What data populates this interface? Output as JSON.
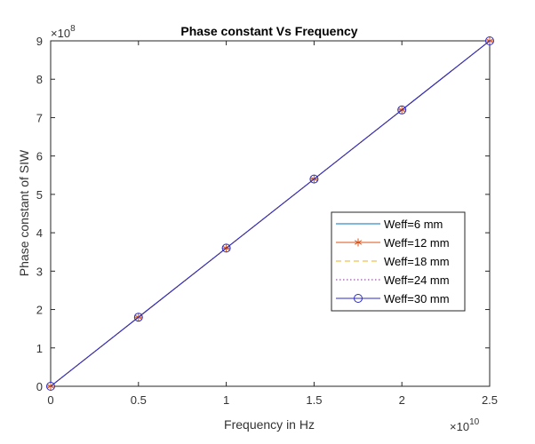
{
  "chart_data": {
    "type": "line",
    "title": "Phase constant  Vs Frequency",
    "xlabel": "Frequency in Hz",
    "ylabel": "Phase constant of SIW",
    "x_exponent_label": "×10",
    "x_exponent_power": "10",
    "y_exponent_label": "×10",
    "y_exponent_power": "8",
    "xlim": [
      0,
      2.5
    ],
    "ylim": [
      0,
      9
    ],
    "x_scale_factor": 10000000000,
    "y_scale_factor": 100000000,
    "xticks": [
      0,
      0.5,
      1,
      1.5,
      2,
      2.5
    ],
    "xtick_labels": [
      "0",
      "0.5",
      "1",
      "1.5",
      "2",
      "2.5"
    ],
    "yticks": [
      0,
      1,
      2,
      3,
      4,
      5,
      6,
      7,
      8,
      9
    ],
    "ytick_labels": [
      "0",
      "1",
      "2",
      "3",
      "4",
      "5",
      "6",
      "7",
      "8",
      "9"
    ],
    "grid": false,
    "legend_position": "right-middle",
    "x": [
      0,
      0.5,
      1,
      1.5,
      2,
      2.5
    ],
    "series": [
      {
        "name": "Weff=6 mm",
        "values": [
          0,
          1.8,
          3.6,
          5.4,
          7.2,
          9.0
        ],
        "color": "#0072bd",
        "line": "solid",
        "marker": "none"
      },
      {
        "name": "Weff=12 mm",
        "values": [
          0,
          1.8,
          3.6,
          5.4,
          7.2,
          9.0
        ],
        "color": "#d95319",
        "line": "solid",
        "marker": "asterisk"
      },
      {
        "name": "Weff=18 mm",
        "values": [
          0,
          1.8,
          3.6,
          5.4,
          7.2,
          9.0
        ],
        "color": "#edb120",
        "line": "dashed",
        "marker": "none"
      },
      {
        "name": "Weff=24 mm",
        "values": [
          0,
          1.8,
          3.6,
          5.4,
          7.2,
          9.0
        ],
        "color": "#7e2f8e",
        "line": "dotted",
        "marker": "none"
      },
      {
        "name": "Weff=30 mm",
        "values": [
          0,
          1.8,
          3.6,
          5.4,
          7.2,
          9.0
        ],
        "color": "#2b2bc4",
        "line": "solid",
        "marker": "circle"
      }
    ]
  }
}
